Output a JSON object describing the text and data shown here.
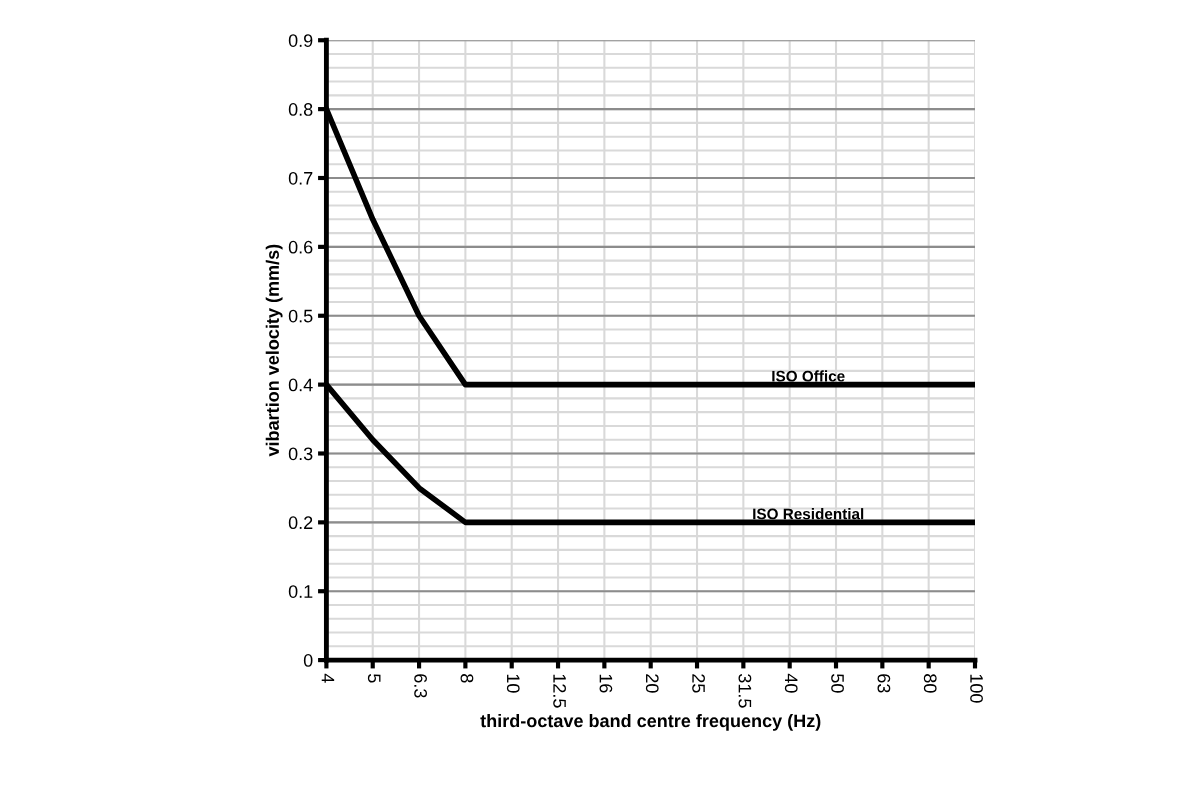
{
  "chart_data": {
    "type": "line",
    "xlabel": "third-octave band centre frequency (Hz)",
    "ylabel": "vibartion velocity (mm/s)",
    "categories": [
      "4",
      "5",
      "6.3",
      "8",
      "10",
      "12.5",
      "16",
      "20",
      "25",
      "31.5",
      "40",
      "50",
      "63",
      "80",
      "100"
    ],
    "series": [
      {
        "name": "ISO Office",
        "color": "#000000",
        "values": [
          0.8,
          0.64,
          0.5,
          0.4,
          0.4,
          0.4,
          0.4,
          0.4,
          0.4,
          0.4,
          0.4,
          0.4,
          0.4,
          0.4,
          0.4
        ]
      },
      {
        "name": "ISO Residential",
        "color": "#000000",
        "values": [
          0.4,
          0.32,
          0.25,
          0.2,
          0.2,
          0.2,
          0.2,
          0.2,
          0.2,
          0.2,
          0.2,
          0.2,
          0.2,
          0.2,
          0.2
        ]
      }
    ],
    "ylim": [
      0,
      0.9
    ],
    "yticks": [
      0,
      0.1,
      0.2,
      0.3,
      0.4,
      0.5,
      0.6,
      0.7,
      0.8,
      0.9
    ],
    "grid": true,
    "legend": false,
    "marker": "none",
    "line_style": "solid"
  }
}
